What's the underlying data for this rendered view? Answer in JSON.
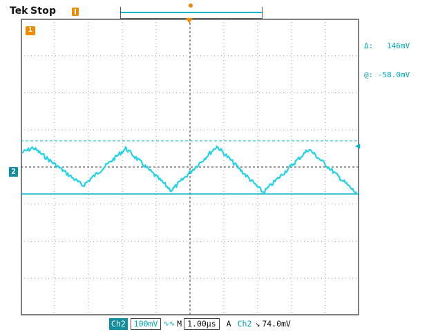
{
  "header": {
    "brand": "Tek",
    "run_state": "Stop"
  },
  "readouts": {
    "delta_label": "Δ:",
    "delta_value": "146mV",
    "at_label": "@:",
    "at_value": "-58.0mV"
  },
  "markers": {
    "ch1_label": "1",
    "ch2_label": "2"
  },
  "status": {
    "ch2_label": "Ch2",
    "volts_per_div": "100mV",
    "coupling": "∿∿",
    "m_label": "M",
    "time_per_div": "1.00µs",
    "trigger_mode": "A",
    "trigger_source": "Ch2",
    "trigger_slope": "↘",
    "trigger_level": "74.0mV"
  },
  "colors": {
    "trace": "#22d3e6",
    "cursor": "#00b4c4",
    "accent": "#f08a00",
    "grid": "#9a9a9a"
  }
}
